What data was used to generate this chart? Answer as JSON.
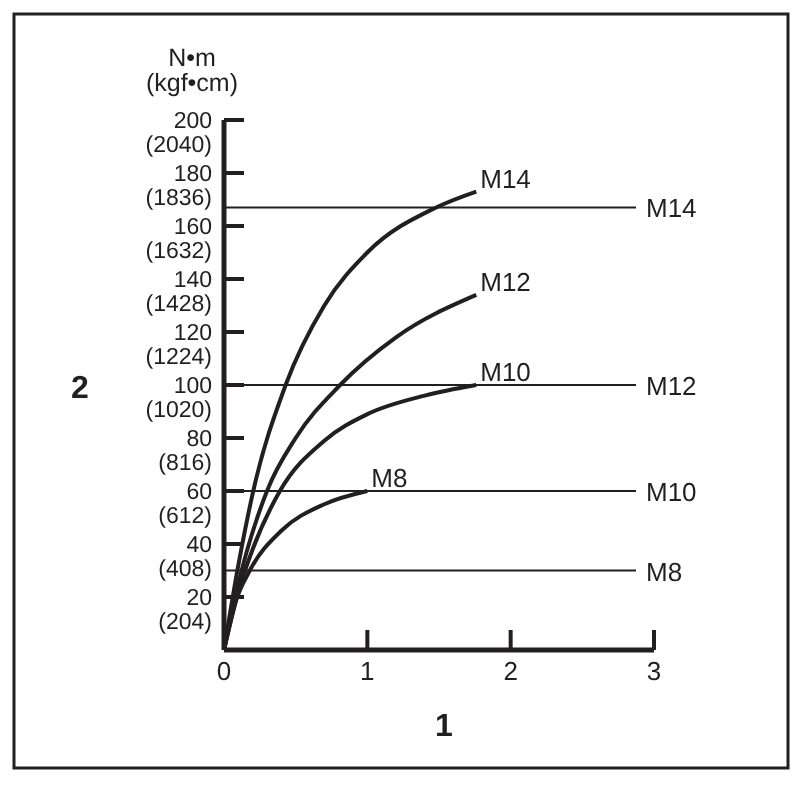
{
  "chart_data": {
    "type": "line",
    "xlabel": "1",
    "annotations": [
      "N•m\n(kgf•cm)",
      "2"
    ],
    "xlim": [
      0,
      3
    ],
    "xticks": [
      0,
      1,
      2,
      3
    ],
    "ylim": [
      0,
      200
    ],
    "yticks": [
      20,
      40,
      60,
      80,
      100,
      120,
      140,
      160,
      180,
      200
    ],
    "y2lim": [
      0,
      2040
    ],
    "y2ticks": [
      {
        "value": 204,
        "label": "(204)"
      },
      {
        "value": 408,
        "label": "(408)"
      },
      {
        "value": 612,
        "label": "(612)"
      },
      {
        "value": 816,
        "label": "(816)"
      },
      {
        "value": 1020,
        "label": "(1020)"
      },
      {
        "value": 1224,
        "label": "(1224)"
      },
      {
        "value": 1428,
        "label": "(1428)"
      },
      {
        "value": 1632,
        "label": "(1632)"
      },
      {
        "value": 1836,
        "label": "(1836)"
      },
      {
        "value": 2040,
        "label": "(2040)"
      }
    ],
    "grid": false,
    "marker": "none",
    "line_style": "solid",
    "series": [
      {
        "name": "M14",
        "color": "#231f20",
        "x": [
          0,
          0.1,
          0.2,
          0.43,
          0.7,
          1.0,
          1.48,
          1.76
        ],
        "values": [
          0,
          32,
          59,
          100,
          130,
          150,
          167,
          173
        ]
      },
      {
        "name": "M12",
        "color": "#231f20",
        "x": [
          0,
          0.1,
          0.3,
          0.5,
          0.81,
          1.2,
          1.76
        ],
        "values": [
          0,
          25,
          60,
          80,
          100,
          118,
          134
        ]
      },
      {
        "name": "M10",
        "color": "#231f20",
        "x": [
          0,
          0.1,
          0.2,
          0.39,
          0.7,
          1.0,
          1.4,
          1.76
        ],
        "values": [
          0,
          22,
          38,
          60,
          79,
          89,
          96,
          100
        ]
      },
      {
        "name": "M8",
        "color": "#231f20",
        "x": [
          0,
          0.08,
          0.18,
          0.4,
          0.7,
          1.0
        ],
        "values": [
          0,
          18,
          30,
          45,
          55,
          60
        ]
      }
    ],
    "ref_lines": [
      {
        "axis": "y",
        "value": 167,
        "label": "M14",
        "color": "#231f20"
      },
      {
        "axis": "y",
        "value": 100,
        "label": "M12",
        "color": "#231f20"
      },
      {
        "axis": "y",
        "value": 60,
        "label": "M10",
        "color": "#231f20"
      },
      {
        "axis": "y",
        "value": 30,
        "label": "M8",
        "color": "#231f20"
      }
    ]
  }
}
